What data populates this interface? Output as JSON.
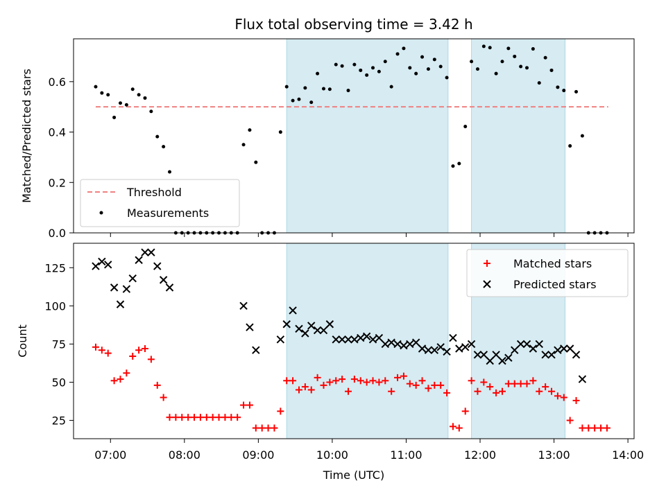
{
  "chart_data": [
    {
      "type": "scatter",
      "title": "Flux total observing time = 3.42 h",
      "ylabel": "Matched/Predicted stars",
      "xlabel": "",
      "xlim": [
        "06:30",
        "14:05"
      ],
      "ylim": [
        0,
        0.77
      ],
      "yticks": [
        "0.0",
        "0.2",
        "0.4",
        "0.6"
      ],
      "grid": false,
      "legend_position": "lower-left",
      "shaded_intervals": [
        [
          "09:23",
          "11:34"
        ],
        [
          "11:53",
          "13:09"
        ]
      ],
      "threshold": {
        "name": "Threshold",
        "value": 0.5,
        "x_range": [
          "06:48",
          "13:44"
        ],
        "color": "#f08080"
      },
      "series": [
        {
          "name": "Measurements",
          "color": "#000000",
          "points": [
            [
              "06:48",
              0.58
            ],
            [
              "06:53",
              0.555
            ],
            [
              "06:58",
              0.548
            ],
            [
              "07:03",
              0.458
            ],
            [
              "07:08",
              0.515
            ],
            [
              "07:13",
              0.508
            ],
            [
              "07:18",
              0.57
            ],
            [
              "07:23",
              0.548
            ],
            [
              "07:28",
              0.535
            ],
            [
              "07:33",
              0.482
            ],
            [
              "07:38",
              0.382
            ],
            [
              "07:43",
              0.342
            ],
            [
              "07:48",
              0.242
            ],
            [
              "07:53",
              0
            ],
            [
              "07:58",
              0
            ],
            [
              "08:03",
              0
            ],
            [
              "08:08",
              0
            ],
            [
              "08:13",
              0
            ],
            [
              "08:18",
              0
            ],
            [
              "08:23",
              0
            ],
            [
              "08:28",
              0
            ],
            [
              "08:33",
              0
            ],
            [
              "08:38",
              0
            ],
            [
              "08:43",
              0
            ],
            [
              "08:48",
              0.35
            ],
            [
              "08:53",
              0.408
            ],
            [
              "08:58",
              0.28
            ],
            [
              "09:03",
              0
            ],
            [
              "09:08",
              0
            ],
            [
              "09:13",
              0
            ],
            [
              "09:18",
              0.4
            ],
            [
              "09:23",
              0.58
            ],
            [
              "09:28",
              0.525
            ],
            [
              "09:33",
              0.53
            ],
            [
              "09:38",
              0.575
            ],
            [
              "09:43",
              0.518
            ],
            [
              "09:48",
              0.632
            ],
            [
              "09:53",
              0.572
            ],
            [
              "09:58",
              0.57
            ],
            [
              "10:03",
              0.668
            ],
            [
              "10:08",
              0.662
            ],
            [
              "10:13",
              0.565
            ],
            [
              "10:18",
              0.668
            ],
            [
              "10:23",
              0.645
            ],
            [
              "10:28",
              0.626
            ],
            [
              "10:33",
              0.655
            ],
            [
              "10:38",
              0.64
            ],
            [
              "10:43",
              0.68
            ],
            [
              "10:48",
              0.58
            ],
            [
              "10:53",
              0.71
            ],
            [
              "10:58",
              0.732
            ],
            [
              "11:03",
              0.655
            ],
            [
              "11:08",
              0.632
            ],
            [
              "11:13",
              0.698
            ],
            [
              "11:18",
              0.65
            ],
            [
              "11:23",
              0.688
            ],
            [
              "11:28",
              0.66
            ],
            [
              "11:33",
              0.616
            ],
            [
              "11:38",
              0.265
            ],
            [
              "11:43",
              0.275
            ],
            [
              "11:48",
              0.422
            ],
            [
              "11:53",
              0.68
            ],
            [
              "11:58",
              0.65
            ],
            [
              "12:03",
              0.74
            ],
            [
              "12:08",
              0.735
            ],
            [
              "12:13",
              0.632
            ],
            [
              "12:18",
              0.68
            ],
            [
              "12:23",
              0.732
            ],
            [
              "12:28",
              0.7
            ],
            [
              "12:33",
              0.66
            ],
            [
              "12:38",
              0.655
            ],
            [
              "12:43",
              0.73
            ],
            [
              "12:48",
              0.595
            ],
            [
              "12:53",
              0.695
            ],
            [
              "12:58",
              0.645
            ],
            [
              "13:03",
              0.578
            ],
            [
              "13:08",
              0.565
            ],
            [
              "13:13",
              0.345
            ],
            [
              "13:18",
              0.56
            ],
            [
              "13:23",
              0.385
            ],
            [
              "13:28",
              0
            ],
            [
              "13:33",
              0
            ],
            [
              "13:38",
              0
            ],
            [
              "13:43",
              0
            ]
          ]
        }
      ],
      "legend": [
        "Threshold",
        "Measurements"
      ]
    },
    {
      "type": "scatter",
      "title": "",
      "ylabel": "Count",
      "xlabel": "Time (UTC)",
      "xlim": [
        "06:30",
        "14:05"
      ],
      "ylim": [
        13,
        141
      ],
      "xticks": [
        "07:00",
        "08:00",
        "09:00",
        "10:00",
        "11:00",
        "12:00",
        "13:00",
        "14:00"
      ],
      "yticks": [
        "25",
        "50",
        "75",
        "100",
        "125"
      ],
      "grid": false,
      "legend_position": "top-right",
      "shaded_intervals": [
        [
          "09:23",
          "11:34"
        ],
        [
          "11:53",
          "13:09"
        ]
      ],
      "series": [
        {
          "name": "Matched stars",
          "marker": "plus",
          "color": "#ff0000",
          "points": [
            [
              "06:48",
              73
            ],
            [
              "06:53",
              71
            ],
            [
              "06:58",
              69
            ],
            [
              "07:03",
              51
            ],
            [
              "07:08",
              52
            ],
            [
              "07:13",
              56
            ],
            [
              "07:18",
              67
            ],
            [
              "07:23",
              71
            ],
            [
              "07:28",
              72
            ],
            [
              "07:33",
              65
            ],
            [
              "07:38",
              48
            ],
            [
              "07:43",
              40
            ],
            [
              "07:48",
              27
            ],
            [
              "07:53",
              27
            ],
            [
              "07:58",
              27
            ],
            [
              "08:03",
              27
            ],
            [
              "08:08",
              27
            ],
            [
              "08:13",
              27
            ],
            [
              "08:18",
              27
            ],
            [
              "08:23",
              27
            ],
            [
              "08:28",
              27
            ],
            [
              "08:33",
              27
            ],
            [
              "08:38",
              27
            ],
            [
              "08:43",
              27
            ],
            [
              "08:48",
              35
            ],
            [
              "08:53",
              35
            ],
            [
              "08:58",
              20
            ],
            [
              "09:03",
              20
            ],
            [
              "09:08",
              20
            ],
            [
              "09:13",
              20
            ],
            [
              "09:18",
              31
            ],
            [
              "09:23",
              51
            ],
            [
              "09:28",
              51
            ],
            [
              "09:33",
              45
            ],
            [
              "09:38",
              47
            ],
            [
              "09:43",
              45
            ],
            [
              "09:48",
              53
            ],
            [
              "09:53",
              48
            ],
            [
              "09:58",
              50
            ],
            [
              "10:03",
              51
            ],
            [
              "10:08",
              52
            ],
            [
              "10:13",
              44
            ],
            [
              "10:18",
              52
            ],
            [
              "10:23",
              51
            ],
            [
              "10:28",
              50
            ],
            [
              "10:33",
              51
            ],
            [
              "10:38",
              50
            ],
            [
              "10:43",
              51
            ],
            [
              "10:48",
              44
            ],
            [
              "10:53",
              53
            ],
            [
              "10:58",
              54
            ],
            [
              "11:03",
              49
            ],
            [
              "11:08",
              48
            ],
            [
              "11:13",
              51
            ],
            [
              "11:18",
              46
            ],
            [
              "11:23",
              48
            ],
            [
              "11:28",
              48
            ],
            [
              "11:33",
              43
            ],
            [
              "11:38",
              21
            ],
            [
              "11:43",
              20
            ],
            [
              "11:48",
              31
            ],
            [
              "11:53",
              51
            ],
            [
              "11:58",
              44
            ],
            [
              "12:03",
              50
            ],
            [
              "12:08",
              47
            ],
            [
              "12:13",
              43
            ],
            [
              "12:18",
              44
            ],
            [
              "12:23",
              49
            ],
            [
              "12:28",
              49
            ],
            [
              "12:33",
              49
            ],
            [
              "12:38",
              49
            ],
            [
              "12:43",
              51
            ],
            [
              "12:48",
              44
            ],
            [
              "12:53",
              47
            ],
            [
              "12:58",
              44
            ],
            [
              "13:03",
              41
            ],
            [
              "13:08",
              40
            ],
            [
              "13:13",
              25
            ],
            [
              "13:18",
              38
            ],
            [
              "13:23",
              20
            ],
            [
              "13:28",
              20
            ],
            [
              "13:33",
              20
            ],
            [
              "13:38",
              20
            ],
            [
              "13:43",
              20
            ]
          ]
        },
        {
          "name": "Predicted stars",
          "marker": "x",
          "color": "#000000",
          "points": [
            [
              "06:48",
              126
            ],
            [
              "06:53",
              129
            ],
            [
              "06:58",
              127
            ],
            [
              "07:03",
              112
            ],
            [
              "07:08",
              101
            ],
            [
              "07:13",
              111
            ],
            [
              "07:18",
              118
            ],
            [
              "07:23",
              130
            ],
            [
              "07:28",
              135
            ],
            [
              "07:33",
              135
            ],
            [
              "07:38",
              126
            ],
            [
              "07:43",
              117
            ],
            [
              "07:48",
              112
            ],
            [
              "08:48",
              100
            ],
            [
              "08:53",
              86
            ],
            [
              "08:58",
              71
            ],
            [
              "09:18",
              78
            ],
            [
              "09:23",
              88
            ],
            [
              "09:28",
              97
            ],
            [
              "09:33",
              85
            ],
            [
              "09:38",
              82
            ],
            [
              "09:43",
              87
            ],
            [
              "09:48",
              84
            ],
            [
              "09:53",
              84
            ],
            [
              "09:58",
              88
            ],
            [
              "10:03",
              78
            ],
            [
              "10:08",
              78
            ],
            [
              "10:13",
              78
            ],
            [
              "10:18",
              78
            ],
            [
              "10:23",
              79
            ],
            [
              "10:28",
              80
            ],
            [
              "10:33",
              78
            ],
            [
              "10:38",
              79
            ],
            [
              "10:43",
              75
            ],
            [
              "10:48",
              76
            ],
            [
              "10:53",
              75
            ],
            [
              "10:58",
              74
            ],
            [
              "11:03",
              75
            ],
            [
              "11:08",
              76
            ],
            [
              "11:13",
              72
            ],
            [
              "11:18",
              71
            ],
            [
              "11:23",
              71
            ],
            [
              "11:28",
              73
            ],
            [
              "11:33",
              70
            ],
            [
              "11:38",
              79
            ],
            [
              "11:43",
              72
            ],
            [
              "11:48",
              73
            ],
            [
              "11:53",
              75
            ],
            [
              "11:58",
              68
            ],
            [
              "12:03",
              68
            ],
            [
              "12:08",
              64
            ],
            [
              "12:13",
              68
            ],
            [
              "12:18",
              64
            ],
            [
              "12:23",
              66
            ],
            [
              "12:28",
              71
            ],
            [
              "12:33",
              75
            ],
            [
              "12:38",
              75
            ],
            [
              "12:43",
              72
            ],
            [
              "12:48",
              75
            ],
            [
              "12:53",
              68
            ],
            [
              "12:58",
              68
            ],
            [
              "13:03",
              71
            ],
            [
              "13:08",
              72
            ],
            [
              "13:13",
              72
            ],
            [
              "13:18",
              68
            ],
            [
              "13:23",
              52
            ]
          ]
        }
      ],
      "legend": [
        "Matched stars",
        "Predicted stars"
      ]
    }
  ],
  "colors": {
    "shade": "#add8e6",
    "threshold": "#f08080",
    "matched": "#ff0000",
    "predicted": "#000000"
  }
}
